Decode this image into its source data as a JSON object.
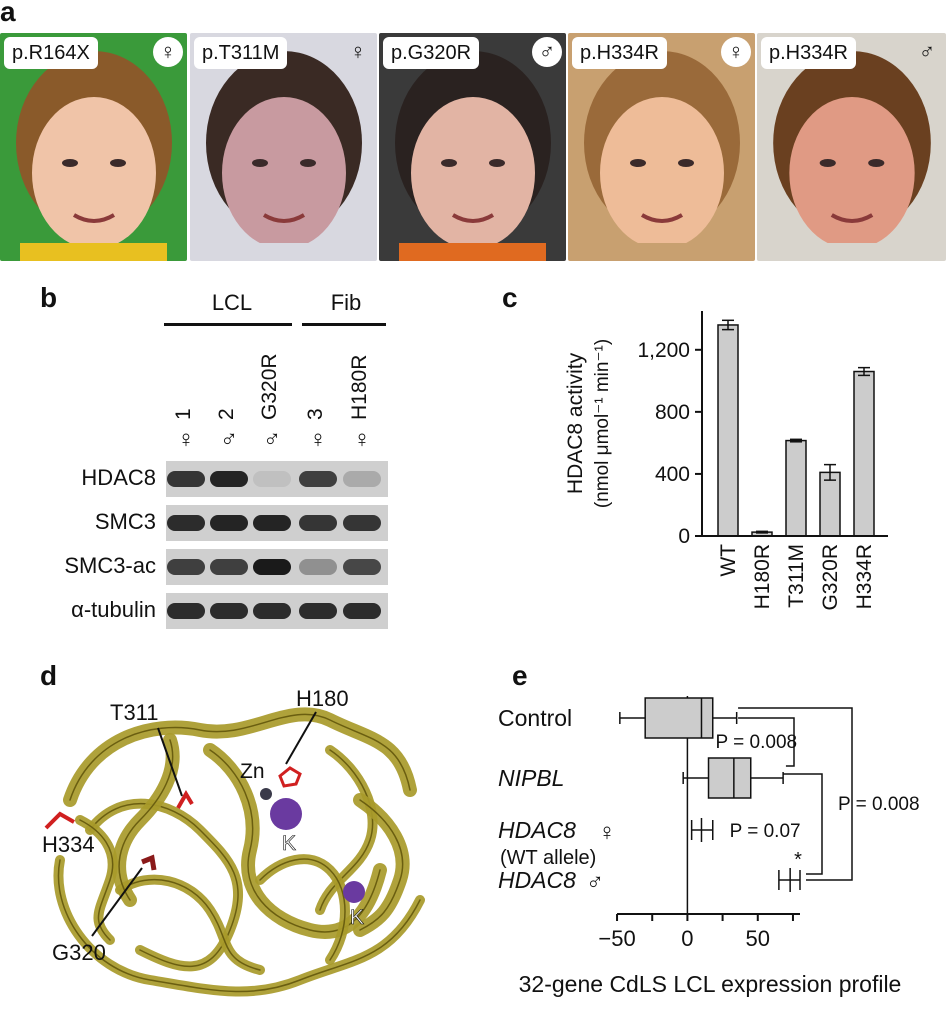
{
  "panel_a": {
    "letter": "a",
    "photos": [
      {
        "label": "p.R164X",
        "sex": "♀",
        "bg": "#3a9a3a",
        "skin": "#f0c4a8",
        "hair": "#8a5a2a"
      },
      {
        "label": "p.T311M",
        "sex": "♀",
        "bg": "#d8d8e0",
        "skin": "#c89aa0",
        "hair": "#3a2a24"
      },
      {
        "label": "p.G320R",
        "sex": "♂",
        "bg": "#3a3a3a",
        "skin": "#e2b4a4",
        "hair": "#2a2220"
      },
      {
        "label": "p.H334R",
        "sex": "♀",
        "bg": "#c8a070",
        "skin": "#eebc98",
        "hair": "#9a6a3a"
      },
      {
        "label": "p.H334R",
        "sex": "♂",
        "bg": "#d8d4cc",
        "skin": "#e09a84",
        "hair": "#6a4020"
      }
    ]
  },
  "panel_b": {
    "letter": "b",
    "group_left": "LCL",
    "group_right": "Fib",
    "lanes": [
      {
        "id": "1",
        "sex": "♀"
      },
      {
        "id": "2",
        "sex": "♂"
      },
      {
        "id": "G320R",
        "sex": "♂"
      },
      {
        "id": "3",
        "sex": "♀"
      },
      {
        "id": "H180R",
        "sex": "♀"
      }
    ],
    "rows": [
      {
        "label": "HDAC8",
        "intensity": [
          0.85,
          0.95,
          0.08,
          0.8,
          0.2
        ]
      },
      {
        "label": "SMC3",
        "intensity": [
          0.9,
          0.95,
          0.95,
          0.85,
          0.85
        ]
      },
      {
        "label": "SMC3-ac",
        "intensity": [
          0.8,
          0.8,
          1.0,
          0.35,
          0.75
        ]
      },
      {
        "label": "α-tubulin",
        "intensity": [
          0.9,
          0.9,
          0.9,
          0.9,
          0.9
        ]
      }
    ]
  },
  "panel_c": {
    "letter": "c",
    "ylabel_line1": "HDAC8 activity",
    "ylabel_line2": "(nmol μmol⁻¹ min⁻¹)",
    "chart_data": {
      "type": "bar",
      "categories": [
        "WT",
        "H180R",
        "T311M",
        "G320R",
        "H334R"
      ],
      "values": [
        1360,
        25,
        615,
        410,
        1060
      ],
      "errors": [
        30,
        5,
        8,
        50,
        25
      ],
      "ylim": [
        0,
        1450
      ],
      "yticks": [
        0,
        400,
        800,
        1200
      ],
      "ytick_labels": [
        "0",
        "400",
        "800",
        "1,200"
      ],
      "bar_color": "#cccccc"
    }
  },
  "panel_d": {
    "letter": "d",
    "labels": {
      "t311": "T311",
      "h180": "H180",
      "zn": "Zn",
      "h334": "H334",
      "k1": "K",
      "k2": "K",
      "g320": "G320"
    },
    "ribbon_color": "#a89a2a",
    "highlight_color": "#d02020",
    "sphere_color": "#6a3aa0"
  },
  "panel_e": {
    "letter": "e",
    "chart_data": {
      "type": "boxplot",
      "xlabel": "32-gene CdLS LCL expression profile",
      "xlim": [
        -55,
        80
      ],
      "xticks": [
        -50,
        0,
        50
      ],
      "xtick_labels": [
        "−50",
        "0",
        "50"
      ],
      "groups": [
        {
          "label": "Control",
          "italic": false,
          "sex": "",
          "sublabel": "",
          "kind": "box",
          "min": -48,
          "q1": -30,
          "median": 10,
          "q3": 18,
          "max": 35
        },
        {
          "label": "NIPBL",
          "italic": true,
          "sex": "",
          "sublabel": "",
          "kind": "box",
          "min": -3,
          "q1": 15,
          "median": 33,
          "q3": 45,
          "max": 68
        },
        {
          "label": "HDAC8",
          "italic": true,
          "sex": "♀",
          "sublabel": "(WT allele)",
          "kind": "errorbar",
          "center": 10,
          "low": 3,
          "high": 18
        },
        {
          "label": "HDAC8",
          "italic": true,
          "sex": "♂",
          "sublabel": "",
          "kind": "errorbar",
          "center": 73,
          "low": 65,
          "high": 80
        }
      ],
      "annotations": [
        {
          "text": "P = 0.008"
        },
        {
          "text": "P = 0.07"
        },
        {
          "text": "P = 0.008"
        },
        {
          "text": "*"
        }
      ]
    }
  }
}
